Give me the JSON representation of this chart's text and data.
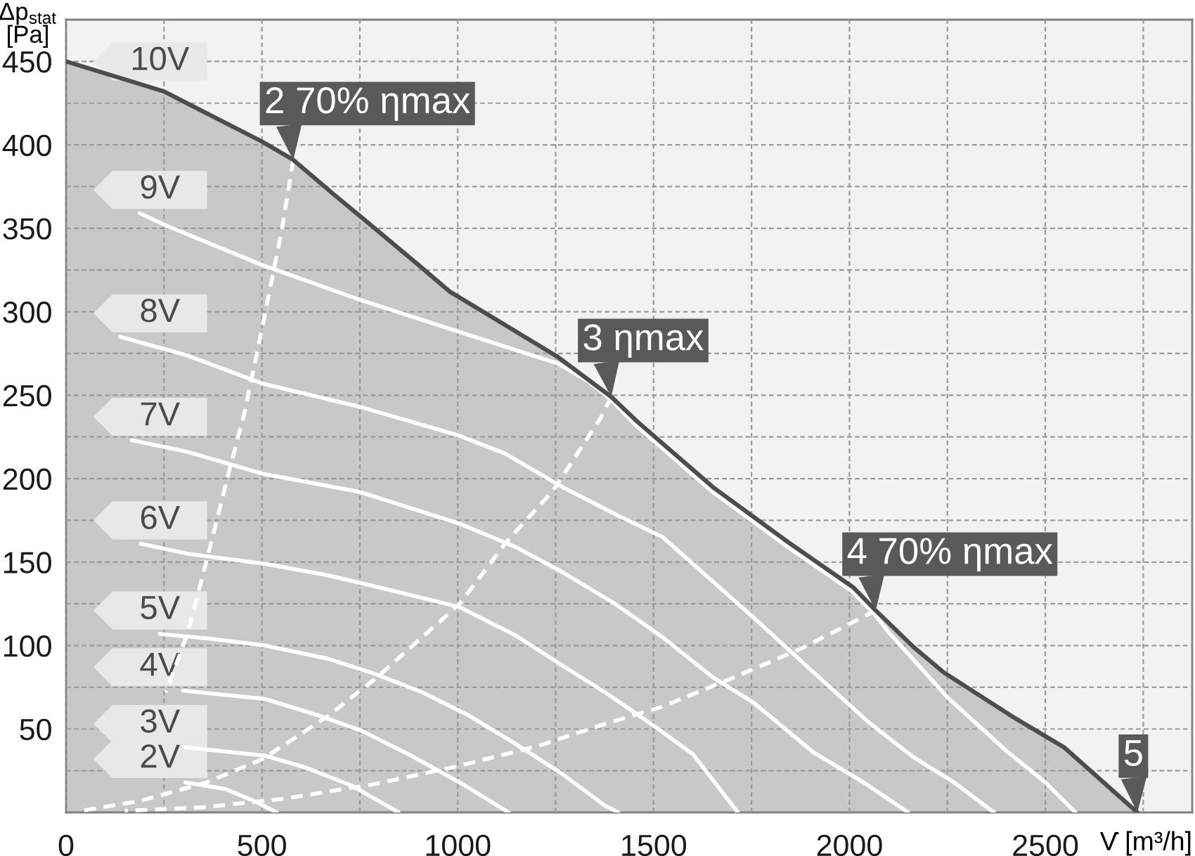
{
  "chart_data": {
    "type": "line",
    "xlabel": "V̇ [m³/h]",
    "ylabel": "Δp$_{stat}$\n[Pa]",
    "xlim": [
      0,
      2875
    ],
    "ylim": [
      0,
      475
    ],
    "xticks": [
      0,
      {
        "value": 250,
        "label": null
      },
      500,
      {
        "value": 750,
        "label": null
      },
      1000,
      {
        "value": 1250,
        "label": null
      },
      1500,
      {
        "value": 1750,
        "label": null
      },
      2000,
      {
        "value": 2250,
        "label": null
      },
      2500,
      {
        "value": 2750,
        "label": null
      }
    ],
    "yticks": [
      {
        "value": 25,
        "label": null
      },
      50,
      {
        "value": 75,
        "label": null
      },
      100,
      {
        "value": 125,
        "label": null
      },
      150,
      {
        "value": 175,
        "label": null
      },
      200,
      {
        "value": 225,
        "label": null
      },
      250,
      {
        "value": 275,
        "label": null
      },
      300,
      {
        "value": 325,
        "label": null
      },
      350,
      {
        "value": 375,
        "label": null
      },
      400,
      {
        "value": 425,
        "label": null
      },
      450
    ],
    "grid": true,
    "series": [
      {
        "name": "10V",
        "type": "area",
        "color": "#c8c8c8",
        "x": [
          0,
          250,
          500,
          580,
          680,
          788,
          900,
          980,
          1100,
          1255,
          1392,
          1459,
          1651,
          1843,
          2009,
          2067,
          2164,
          2240,
          2419,
          2548,
          2735
        ],
        "values": [
          450,
          432,
          402,
          391,
          371,
          350,
          328,
          312,
          295,
          273,
          249,
          234,
          195,
          162,
          135,
          121,
          99,
          84,
          57,
          39,
          0
        ]
      },
      {
        "name": "9V",
        "color": "#ffffff",
        "x": [
          188,
          262,
          501,
          752,
          1003,
          1255,
          1336,
          1392,
          1459,
          1651,
          1843,
          2009,
          2067,
          2100,
          2250,
          2400,
          2500,
          2577
        ],
        "values": [
          359,
          351,
          328,
          307,
          288,
          269,
          258,
          247,
          231,
          192,
          159,
          132,
          118,
          108,
          69,
          37,
          18,
          0
        ]
      },
      {
        "name": "8V",
        "color": "#ffffff",
        "x": [
          138,
          307,
          501,
          750,
          1001,
          1121,
          1267,
          1408,
          1523,
          1754,
          1908,
          2049,
          2164,
          2267,
          2369
        ],
        "values": [
          285,
          274,
          257,
          243,
          226,
          215,
          195,
          178,
          165,
          117,
          84,
          54,
          33,
          18,
          0
        ]
      },
      {
        "name": "7V",
        "color": "#ffffff",
        "x": [
          168,
          311,
          501,
          750,
          858,
          1005,
          1148,
          1267,
          1395,
          1523,
          1651,
          1754,
          1908,
          2036,
          2150
        ],
        "values": [
          223,
          216,
          203,
          192,
          184,
          173,
          159,
          144,
          126,
          105,
          81,
          66,
          36,
          18,
          0
        ]
      },
      {
        "name": "6V",
        "color": "#ffffff",
        "x": [
          191,
          311,
          508,
          670,
          849,
          1005,
          1148,
          1267,
          1376,
          1500,
          1600,
          1715
        ],
        "values": [
          161,
          155,
          149,
          142,
          132,
          123,
          106,
          88,
          72,
          52,
          35,
          0
        ]
      },
      {
        "name": "5V",
        "color": "#ffffff",
        "x": [
          239,
          371,
          508,
          670,
          789,
          909,
          1029,
          1148,
          1267,
          1376,
          1410
        ],
        "values": [
          107,
          104,
          100,
          92,
          83,
          72,
          58,
          41,
          23,
          4,
          0
        ]
      },
      {
        "name": "4V",
        "color": "#ffffff",
        "x": [
          299,
          508,
          646,
          754,
          873,
          1005,
          1130
        ],
        "values": [
          73,
          68,
          58,
          49,
          35,
          18,
          0
        ]
      },
      {
        "name": "3V",
        "color": "#ffffff",
        "x": [
          305,
          508,
          610,
          730,
          849
        ],
        "values": [
          39,
          34,
          27,
          16,
          0
        ]
      },
      {
        "name": "2V",
        "color": "#ffffff",
        "x": [
          305,
          407,
          478,
          538
        ],
        "values": [
          18,
          14,
          7,
          0
        ]
      },
      {
        "line_style": "dashed",
        "color": "#ffffff",
        "x": [
          580,
          550,
          502,
          455,
          419,
          359,
          311,
          280,
          255
        ],
        "values": [
          391,
          348,
          292,
          239,
          207,
          151,
          108,
          88,
          72
        ]
      },
      {
        "line_style": "dashed",
        "color": "#ffffff",
        "x": [
          1392,
          1364,
          1244,
          1124,
          1005,
          885,
          789,
          670,
          502,
          359,
          191,
          40
        ],
        "values": [
          249,
          236,
          193,
          162,
          125,
          100,
          80,
          58,
          32,
          18,
          7,
          1
        ]
      },
      {
        "line_style": "dashed",
        "color": "#ffffff",
        "x": [
          2067,
          1875,
          1696,
          1518,
          1375,
          1208,
          1005,
          789,
          550,
          347,
          150
        ],
        "values": [
          121,
          98,
          80,
          63,
          53,
          40,
          28,
          17,
          8,
          3,
          1
        ]
      }
    ],
    "annotations": [
      {
        "text": "2 70% ηmax",
        "x": 580,
        "y": 391
      },
      {
        "text": "3 ηmax",
        "x": 1392,
        "y": 249
      },
      {
        "text": "4 70% ηmax",
        "x": 2067,
        "y": 121
      },
      {
        "text": "5",
        "x": 2735,
        "y": 0
      }
    ]
  }
}
